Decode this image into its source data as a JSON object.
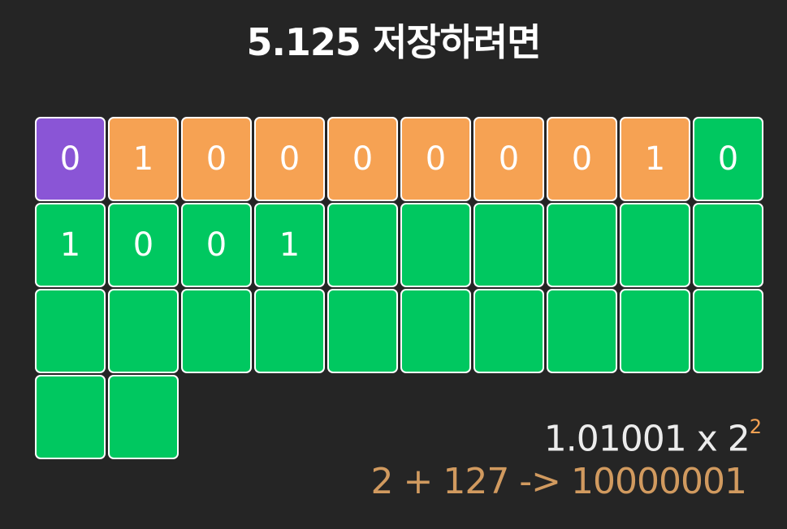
{
  "title": "5.125 저장하려면",
  "bits": [
    {
      "kind": "sign",
      "value": "0"
    },
    {
      "kind": "exp",
      "value": "1"
    },
    {
      "kind": "exp",
      "value": "0"
    },
    {
      "kind": "exp",
      "value": "0"
    },
    {
      "kind": "exp",
      "value": "0"
    },
    {
      "kind": "exp",
      "value": "0"
    },
    {
      "kind": "exp",
      "value": "0"
    },
    {
      "kind": "exp",
      "value": "0"
    },
    {
      "kind": "exp",
      "value": "1"
    },
    {
      "kind": "man",
      "value": "0"
    },
    {
      "kind": "man",
      "value": "1"
    },
    {
      "kind": "man",
      "value": "0"
    },
    {
      "kind": "man",
      "value": "0"
    },
    {
      "kind": "man",
      "value": "1"
    },
    {
      "kind": "man",
      "value": ""
    },
    {
      "kind": "man",
      "value": ""
    },
    {
      "kind": "man",
      "value": ""
    },
    {
      "kind": "man",
      "value": ""
    },
    {
      "kind": "man",
      "value": ""
    },
    {
      "kind": "man",
      "value": ""
    },
    {
      "kind": "man",
      "value": ""
    },
    {
      "kind": "man",
      "value": ""
    },
    {
      "kind": "man",
      "value": ""
    },
    {
      "kind": "man",
      "value": ""
    },
    {
      "kind": "man",
      "value": ""
    },
    {
      "kind": "man",
      "value": ""
    },
    {
      "kind": "man",
      "value": ""
    },
    {
      "kind": "man",
      "value": ""
    },
    {
      "kind": "man",
      "value": ""
    },
    {
      "kind": "man",
      "value": ""
    },
    {
      "kind": "man",
      "value": ""
    },
    {
      "kind": "man",
      "value": ""
    }
  ],
  "formula": {
    "mantissa": "1.01001 x 2",
    "exponent": "2"
  },
  "exponent_calc": "2 + 127 -> 10000001",
  "colors": {
    "background": "#252525",
    "sign": "#8a55d6",
    "exponent": "#f6a253",
    "mantissa": "#00c860",
    "exponent_text": "#d19a5f"
  }
}
